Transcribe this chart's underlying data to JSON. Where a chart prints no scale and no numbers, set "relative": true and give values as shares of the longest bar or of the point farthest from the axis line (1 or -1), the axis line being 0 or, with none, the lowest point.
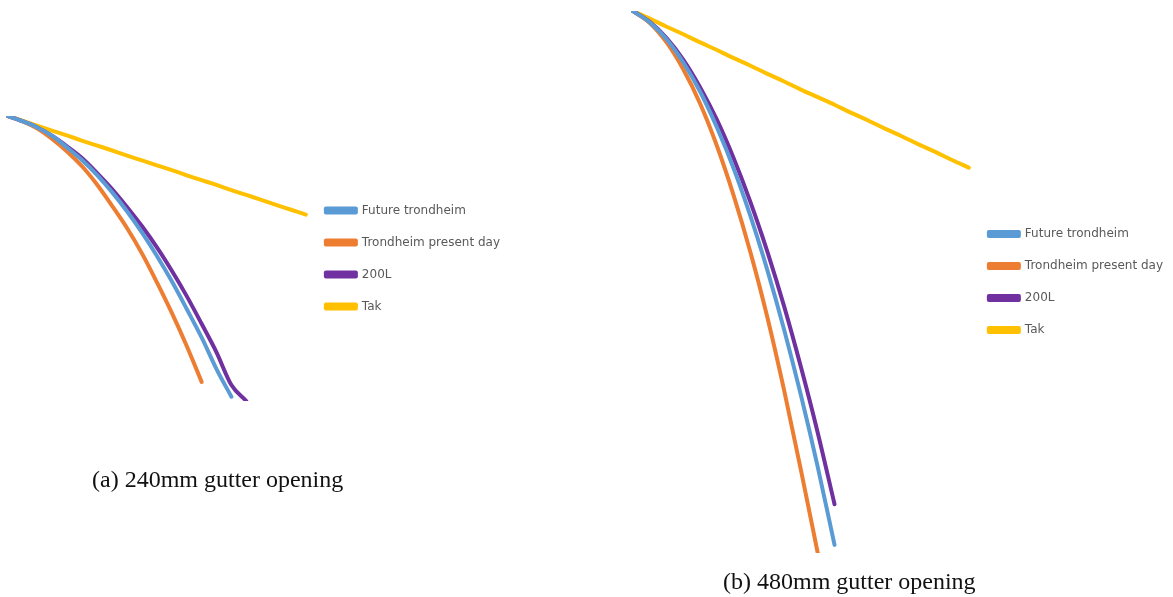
{
  "chart_data": [
    {
      "type": "line",
      "relative": true,
      "marker": "none",
      "legend": "right",
      "annotations": [
        "(a) 240mm gutter opening"
      ],
      "categories": [
        null,
        null,
        null,
        null,
        null,
        null,
        null,
        null,
        null,
        null,
        null,
        null,
        null,
        null,
        null,
        null,
        null,
        null,
        null,
        null,
        null
      ],
      "series": [
        {
          "name": "Future trondheim",
          "color": "#5b9bd5",
          "values": [
            1,
            0.981,
            0.959,
            0.929,
            0.888,
            0.844,
            0.792,
            0.732,
            0.665,
            0.591,
            0.509,
            0.42,
            0.323,
            0.223,
            0.112,
            0.015,
            null,
            null,
            null,
            null,
            null
          ]
        },
        {
          "name": "Trondheim present day",
          "color": "#ed7d31",
          "values": [
            1,
            0.981,
            0.955,
            0.918,
            0.874,
            0.822,
            0.758,
            0.684,
            0.606,
            0.517,
            0.416,
            0.309,
            0.193,
            0.067,
            null,
            null,
            null,
            null,
            null,
            null,
            null
          ]
        },
        {
          "name": "200L",
          "color": "#7030a0",
          "values": [
            1,
            0.981,
            0.959,
            0.929,
            0.892,
            0.851,
            0.799,
            0.743,
            0.68,
            0.613,
            0.539,
            0.457,
            0.368,
            0.271,
            0.171,
            0.056,
            0,
            null,
            null,
            null,
            null
          ]
        },
        {
          "name": "Tak",
          "color": "#ffc000",
          "values": [
            1,
            0.983,
            0.965,
            0.948,
            0.931,
            0.913,
            0.896,
            0.879,
            0.861,
            0.844,
            0.827,
            0.81,
            0.792,
            0.775,
            0.758,
            0.74,
            0.723,
            0.706,
            0.688,
            0.671,
            0.654
          ]
        }
      ]
    },
    {
      "type": "line",
      "relative": true,
      "marker": "none",
      "legend": "right",
      "annotations": [
        "(b) 480mm gutter opening"
      ],
      "categories": [
        null,
        null,
        null,
        null,
        null,
        null,
        null,
        null,
        null,
        null,
        null,
        null,
        null,
        null,
        null,
        null,
        null,
        null,
        null,
        null,
        null
      ],
      "series": [
        {
          "name": "Future trondheim",
          "color": "#5b9bd5",
          "values": [
            1,
            0.979,
            0.948,
            0.905,
            0.851,
            0.785,
            0.709,
            0.621,
            0.522,
            0.412,
            0.291,
            0.159,
            0.015,
            null,
            null,
            null,
            null,
            null,
            null,
            null,
            null
          ]
        },
        {
          "name": "Trondheim present day",
          "color": "#ed7d31",
          "values": [
            1,
            0.978,
            0.942,
            0.892,
            0.829,
            0.751,
            0.659,
            0.554,
            0.435,
            0.3,
            0.153,
            0,
            null,
            null,
            null,
            null,
            null,
            null,
            null,
            null,
            null
          ]
        },
        {
          "name": "200L",
          "color": "#7030a0",
          "values": [
            1,
            0.98,
            0.95,
            0.91,
            0.859,
            0.799,
            0.728,
            0.647,
            0.556,
            0.455,
            0.343,
            0.222,
            0.09,
            null,
            null,
            null,
            null,
            null,
            null,
            null,
            null
          ]
        },
        {
          "name": "Tak",
          "color": "#ffc000",
          "values": [
            1,
            0.986,
            0.971,
            0.957,
            0.942,
            0.928,
            0.913,
            0.899,
            0.884,
            0.87,
            0.855,
            0.841,
            0.827,
            0.812,
            0.798,
            0.783,
            0.769,
            0.754,
            0.74,
            0.725,
            0.711
          ]
        }
      ]
    }
  ]
}
